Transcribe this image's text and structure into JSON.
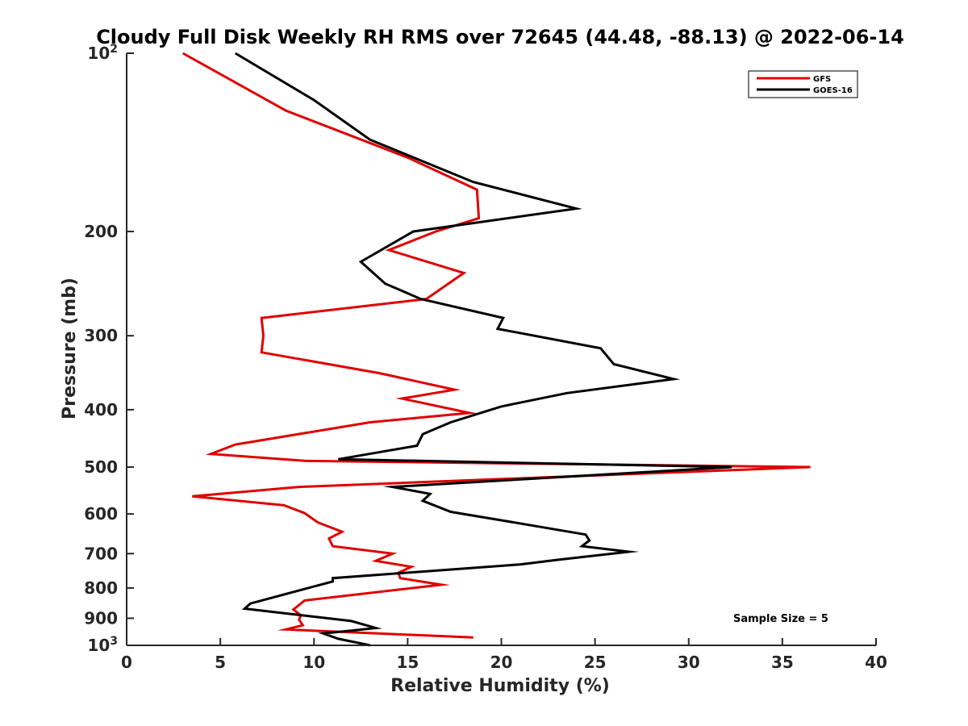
{
  "chart_data": {
    "type": "line",
    "title": "Cloudy Full Disk Weekly RH RMS over 72645 (44.48, -88.13) @ 2022-06-14",
    "xlabel": "Relative Humidity (%)",
    "ylabel": "Pressure (mb)",
    "xlim": [
      0,
      40
    ],
    "ylim": [
      100,
      1000
    ],
    "y_scale": "log",
    "y_reversed": true,
    "grid": false,
    "legend_position": "top-right",
    "annotation": "Sample Size = 5",
    "x_ticks": [
      0,
      5,
      10,
      15,
      20,
      25,
      30,
      35,
      40
    ],
    "x_tick_labels": [
      "0",
      "5",
      "10",
      "15",
      "20",
      "25",
      "30",
      "35",
      "40"
    ],
    "y_ticks": [
      100,
      200,
      300,
      400,
      500,
      600,
      700,
      800,
      900,
      1000
    ],
    "y_tick_labels": [
      {
        "base": "10",
        "exp": "2"
      },
      {
        "base": "200"
      },
      {
        "base": "300"
      },
      {
        "base": "400"
      },
      {
        "base": "500"
      },
      {
        "base": "600"
      },
      {
        "base": "700"
      },
      {
        "base": "800"
      },
      {
        "base": "900"
      },
      {
        "base": "10",
        "exp": "3"
      }
    ],
    "series": [
      {
        "name": "GFS",
        "color": "#e00000",
        "points": [
          [
            3.0,
            100
          ],
          [
            8.5,
            125
          ],
          [
            15.0,
            150
          ],
          [
            18.7,
            170
          ],
          [
            18.8,
            190
          ],
          [
            16.5,
            200
          ],
          [
            14.0,
            215
          ],
          [
            18.0,
            235
          ],
          [
            16.0,
            260
          ],
          [
            7.2,
            280
          ],
          [
            7.3,
            300
          ],
          [
            7.2,
            320
          ],
          [
            13.5,
            347
          ],
          [
            17.5,
            370
          ],
          [
            14.7,
            383
          ],
          [
            18.3,
            405
          ],
          [
            13.0,
            420
          ],
          [
            5.8,
            458
          ],
          [
            4.5,
            475
          ],
          [
            9.5,
            488
          ],
          [
            36.5,
            500
          ],
          [
            9.2,
            540
          ],
          [
            3.5,
            560
          ],
          [
            8.4,
            580
          ],
          [
            9.5,
            598
          ],
          [
            10.2,
            620
          ],
          [
            11.5,
            643
          ],
          [
            10.8,
            660
          ],
          [
            11.0,
            680
          ],
          [
            14.2,
            700
          ],
          [
            13.3,
            720
          ],
          [
            15.2,
            737
          ],
          [
            14.5,
            754
          ],
          [
            14.6,
            770
          ],
          [
            16.8,
            790
          ],
          [
            9.5,
            840
          ],
          [
            8.9,
            870
          ],
          [
            9.3,
            890
          ],
          [
            9.2,
            905
          ],
          [
            9.4,
            925
          ],
          [
            8.5,
            940
          ],
          [
            18.5,
            970
          ]
        ]
      },
      {
        "name": "GOES-16",
        "color": "#000000",
        "points": [
          [
            5.8,
            100
          ],
          [
            10.0,
            120
          ],
          [
            13.0,
            140
          ],
          [
            18.5,
            165
          ],
          [
            24.0,
            183
          ],
          [
            15.3,
            200
          ],
          [
            12.5,
            225
          ],
          [
            13.8,
            245
          ],
          [
            15.7,
            260
          ],
          [
            20.1,
            280
          ],
          [
            19.8,
            292
          ],
          [
            25.3,
            315
          ],
          [
            26.0,
            335
          ],
          [
            29.2,
            355
          ],
          [
            23.5,
            375
          ],
          [
            20.0,
            395
          ],
          [
            17.3,
            420
          ],
          [
            15.8,
            440
          ],
          [
            15.5,
            460
          ],
          [
            11.3,
            485
          ],
          [
            32.3,
            500
          ],
          [
            14.2,
            540
          ],
          [
            16.2,
            555
          ],
          [
            15.8,
            570
          ],
          [
            17.3,
            595
          ],
          [
            20.0,
            615
          ],
          [
            24.5,
            650
          ],
          [
            24.7,
            665
          ],
          [
            24.3,
            680
          ],
          [
            26.8,
            695
          ],
          [
            23.0,
            717
          ],
          [
            21.0,
            730
          ],
          [
            11.0,
            770
          ],
          [
            11.0,
            780
          ],
          [
            6.6,
            850
          ],
          [
            6.3,
            867
          ],
          [
            12.0,
            910
          ],
          [
            13.3,
            935
          ],
          [
            10.5,
            955
          ],
          [
            11.3,
            975
          ],
          [
            13.0,
            1000
          ]
        ]
      }
    ]
  }
}
